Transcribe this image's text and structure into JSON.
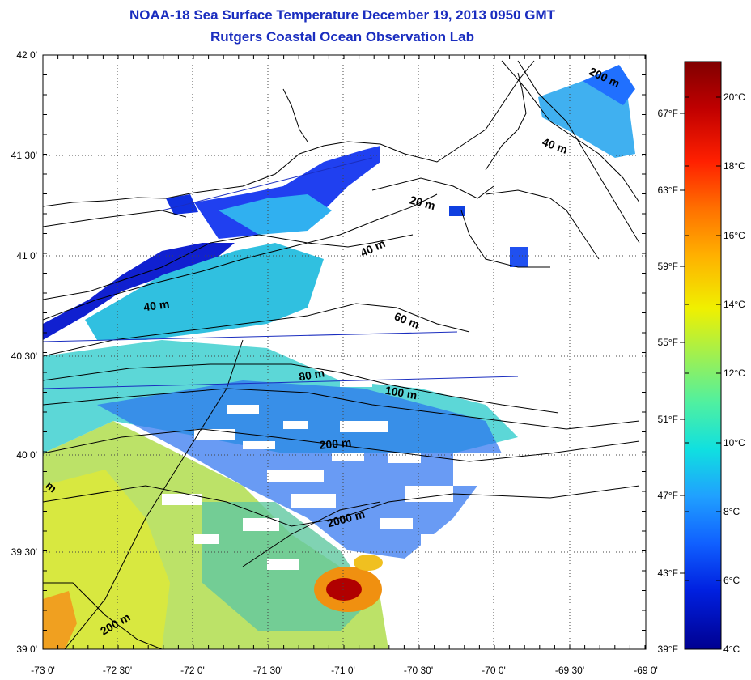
{
  "title_line1": "NOAA-18 Sea Surface Temperature December 19, 2013 0950 GMT",
  "title_line2": "Rutgers Coastal Ocean Observation Lab",
  "lat_labels": [
    "42 0'",
    "41 30'",
    "41 0'",
    "40 30'",
    "40 0'",
    "39 30'",
    "39 0'"
  ],
  "lon_labels": [
    "-73 0'",
    "-72 30'",
    "-72 0'",
    "-71 30'",
    "-71 0'",
    "-70 30'",
    "-70 0'",
    "-69 30'",
    "-69 0'"
  ],
  "fahrenheit_labels": [
    "67°F",
    "63°F",
    "59°F",
    "55°F",
    "51°F",
    "47°F",
    "43°F",
    "39°F"
  ],
  "celsius_labels": [
    "20°C",
    "18°C",
    "16°C",
    "14°C",
    "12°C",
    "10°C",
    "8°C",
    "6°C",
    "4°C"
  ],
  "isobath_labels": [
    "200 m",
    "40 m",
    "20 m",
    "40 m",
    "40 m",
    "60 m",
    "80 m",
    "100 m",
    "200 m",
    "2000 m",
    "200 m",
    "m"
  ],
  "colorbar_colors": [
    "#800000",
    "#c00000",
    "#ff2000",
    "#ff7000",
    "#ffb000",
    "#f0f000",
    "#a0f050",
    "#50f0a0",
    "#10e0e0",
    "#20a0ff",
    "#1060ff",
    "#0020e0",
    "#000090"
  ]
}
